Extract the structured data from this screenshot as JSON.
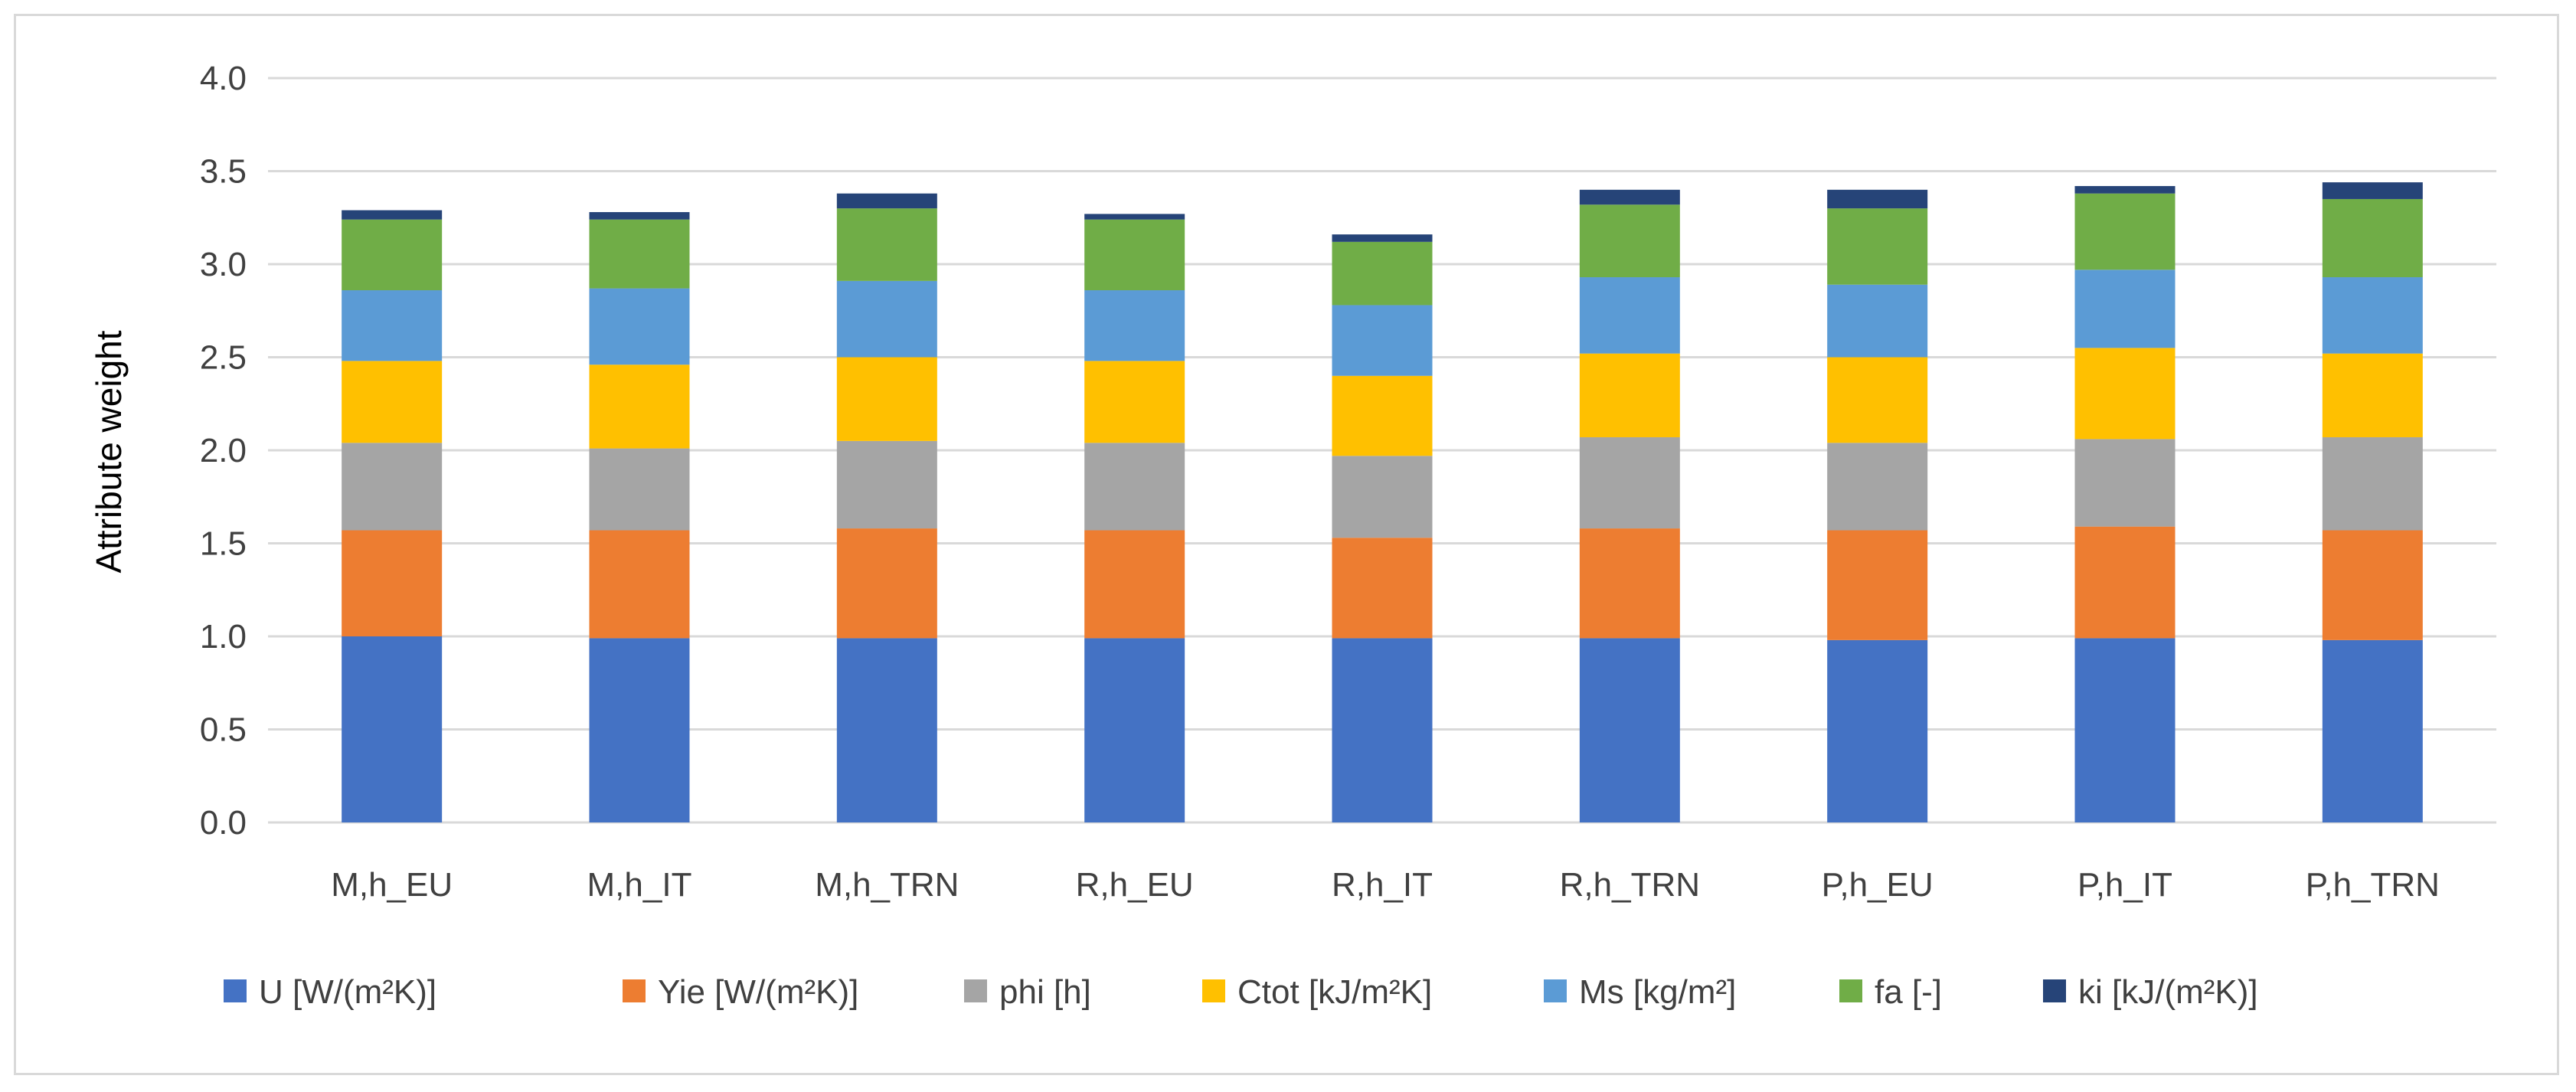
{
  "chart_data": {
    "type": "bar",
    "stacked": true,
    "title": "",
    "xlabel": "",
    "ylabel": "Attribute weight",
    "ylim": [
      0,
      4.0
    ],
    "yticks": [
      "0.0",
      "0.5",
      "1.0",
      "1.5",
      "2.0",
      "2.5",
      "3.0",
      "3.5",
      "4.0"
    ],
    "grid": true,
    "legend_position": "bottom",
    "categories": [
      "M,h_EU",
      "M,h_IT",
      "M,h_TRN",
      "R,h_EU",
      "R,h_IT",
      "R,h_TRN",
      "P,h_EU",
      "P,h_IT",
      "P,h_TRN"
    ],
    "series": [
      {
        "name": "U [W/(m²K)]",
        "color": "#4472C4",
        "values": [
          1.0,
          0.99,
          0.99,
          0.99,
          0.99,
          0.99,
          0.98,
          0.99,
          0.98
        ]
      },
      {
        "name": "Yie [W/(m²K)]",
        "color": "#ED7D31",
        "values": [
          0.57,
          0.58,
          0.59,
          0.58,
          0.54,
          0.59,
          0.59,
          0.6,
          0.59
        ]
      },
      {
        "name": "phi [h]",
        "color": "#A5A5A5",
        "values": [
          0.47,
          0.44,
          0.47,
          0.47,
          0.44,
          0.49,
          0.47,
          0.47,
          0.5
        ]
      },
      {
        "name": "Ctot [kJ/m²K]",
        "color": "#FFC000",
        "values": [
          0.44,
          0.45,
          0.45,
          0.44,
          0.43,
          0.45,
          0.46,
          0.49,
          0.45
        ]
      },
      {
        "name": "Ms [kg/m²]",
        "color": "#5B9BD5",
        "values": [
          0.38,
          0.41,
          0.41,
          0.38,
          0.38,
          0.41,
          0.39,
          0.42,
          0.41
        ]
      },
      {
        "name": "fa [-]",
        "color": "#70AD47",
        "values": [
          0.38,
          0.37,
          0.39,
          0.38,
          0.34,
          0.39,
          0.41,
          0.41,
          0.42
        ]
      },
      {
        "name": "ki [kJ/(m²K)]",
        "color": "#264478",
        "values": [
          0.05,
          0.04,
          0.08,
          0.03,
          0.04,
          0.08,
          0.1,
          0.04,
          0.09
        ]
      }
    ]
  }
}
